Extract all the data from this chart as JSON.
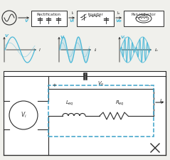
{
  "bg_color": "#f0f0ec",
  "line_color": "#2a2a2a",
  "blue_color": "#4ab8d8",
  "dashed_blue": "#3aa0c8",
  "block1_label": "Rectification",
  "block2_label": "Inverter",
  "block3_label": "Pan-inductor",
  "v_label": "V",
  "vi_label": "Vi",
  "vo_label": "Vo",
  "i_label": "I",
  "ii_label": "Ii",
  "io_label": "Io",
  "c_label": "C",
  "leq_label": "Leq",
  "req_label": "Req",
  "vovolt_label": "Vo",
  "vi_src_label": "Vi"
}
